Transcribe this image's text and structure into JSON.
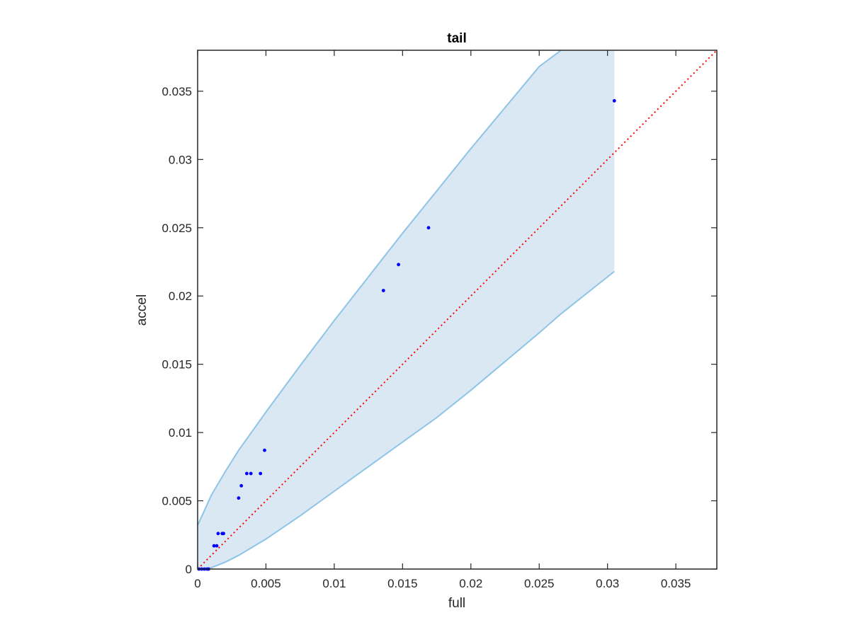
{
  "chart_data": {
    "type": "scatter",
    "title": "tail",
    "xlabel": "full",
    "ylabel": "accel",
    "xlim": [
      0,
      0.038
    ],
    "ylim": [
      0,
      0.038
    ],
    "xticks": [
      0,
      0.005,
      0.01,
      0.015,
      0.02,
      0.025,
      0.03,
      0.035
    ],
    "yticks": [
      0,
      0.005,
      0.01,
      0.015,
      0.02,
      0.025,
      0.03,
      0.035
    ],
    "xtick_labels": [
      "0",
      "0.005",
      "0.01",
      "0.015",
      "0.02",
      "0.025",
      "0.03",
      "0.035"
    ],
    "ytick_labels": [
      "0",
      "0.005",
      "0.01",
      "0.015",
      "0.02",
      "0.025",
      "0.03",
      "0.035"
    ],
    "grid": false,
    "box": true,
    "points": {
      "x": [
        0.0001,
        0.0003,
        0.0005,
        0.0007,
        0.0008,
        0.0012,
        0.0014,
        0.0015,
        0.0018,
        0.0019,
        0.003,
        0.0032,
        0.0036,
        0.0039,
        0.0046,
        0.0049,
        0.0136,
        0.0147,
        0.0169,
        0.0305
      ],
      "y": [
        0,
        0,
        0,
        0,
        0,
        0.0017,
        0.0017,
        0.0026,
        0.0026,
        0.0026,
        0.0052,
        0.0061,
        0.007,
        0.007,
        0.007,
        0.0087,
        0.0204,
        0.0223,
        0.025,
        0.0343
      ],
      "color": "#0000ff"
    },
    "reference_line": {
      "x": [
        0,
        0.038
      ],
      "y": [
        0,
        0.038
      ],
      "color": "#ff0000",
      "style": "dotted"
    },
    "band": {
      "x": [
        0,
        0.001,
        0.002,
        0.003,
        0.004,
        0.005,
        0.0075,
        0.01,
        0.0125,
        0.015,
        0.0175,
        0.02,
        0.0225,
        0.025,
        0.0266,
        0.0305
      ],
      "upper": [
        0.0032,
        0.0054,
        0.0071,
        0.0087,
        0.0101,
        0.0115,
        0.0149,
        0.0182,
        0.0214,
        0.0246,
        0.0277,
        0.0308,
        0.0338,
        0.0368,
        0.038,
        0.038
      ],
      "lower": [
        0,
        0.0001,
        0.0005,
        0.001,
        0.0016,
        0.0022,
        0.0039,
        0.0057,
        0.0075,
        0.0093,
        0.0111,
        0.0131,
        0.0152,
        0.0173,
        0.0187,
        0.0218
      ],
      "fill_color": "#dae8f4",
      "edge_color": "#8ec4e6"
    }
  }
}
